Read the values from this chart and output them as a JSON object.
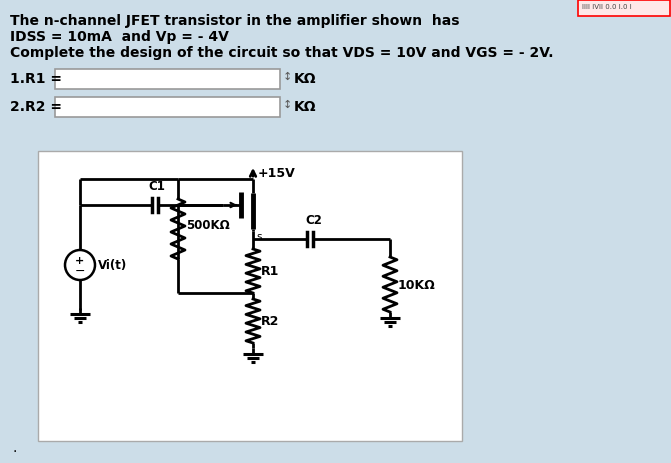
{
  "bg_color": "#ccdde8",
  "panel_bg": "#ffffff",
  "text_color": "#000000",
  "title_line1": "The n-channel JFET transistor in the amplifier shown  has",
  "title_line2": "IDSS = 10mA  and Vp = - 4V",
  "title_line3": "Complete the design of the circuit so that VDS = 10V and VGS = - 2V.",
  "label_R1": "1.R1 =",
  "label_R2": "2.R2 =",
  "unit_kohm": "KΩ",
  "supply_label": "+15V",
  "r500_label": "500KΩ",
  "r1_label": "R1",
  "r2_label": "R2",
  "r10k_label": "10KΩ",
  "c1_label": "C1",
  "c2_label": "C2",
  "vi_label": "Vi(t)",
  "s_label": "s",
  "top_right_text": "IIII IVII 0.0 I.0 I"
}
